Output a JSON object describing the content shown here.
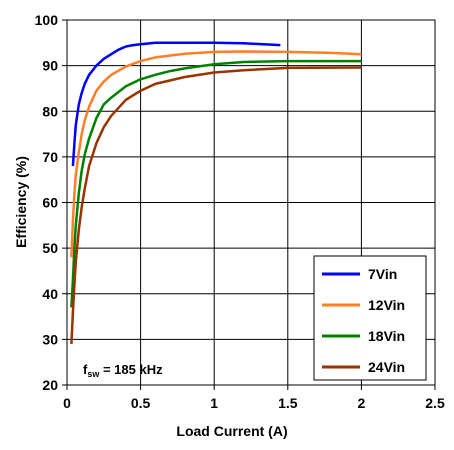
{
  "chart_data": {
    "type": "line",
    "title": "",
    "xlabel": "Load Current (A)",
    "ylabel": "Efficiency (%)",
    "xlim": [
      0,
      2.5
    ],
    "ylim": [
      20,
      100
    ],
    "x_ticks": [
      0,
      0.5,
      1,
      1.5,
      2,
      2.5
    ],
    "x_tick_labels": [
      "0",
      "0.5",
      "1",
      "1.5",
      "2",
      "2.5"
    ],
    "y_ticks": [
      20,
      30,
      40,
      50,
      60,
      70,
      80,
      90,
      100
    ],
    "y_tick_labels": [
      "20",
      "30",
      "40",
      "50",
      "60",
      "70",
      "80",
      "90",
      "100"
    ],
    "grid": true,
    "legend_position": "bottom-right",
    "annotation": {
      "main": "f",
      "sub": "sw",
      "rest": " = 185 kHz"
    },
    "series": [
      {
        "name": "7Vin",
        "color": "#0000FF",
        "x": [
          0.04,
          0.05,
          0.06,
          0.08,
          0.1,
          0.12,
          0.15,
          0.2,
          0.25,
          0.3,
          0.35,
          0.4,
          0.45,
          0.5,
          0.6,
          0.8,
          1.0,
          1.2,
          1.45
        ],
        "y": [
          68,
          73,
          77,
          81.5,
          84,
          86,
          88,
          90,
          91.5,
          92.5,
          93.5,
          94.2,
          94.5,
          94.7,
          95,
          95,
          95,
          94.9,
          94.5
        ]
      },
      {
        "name": "12Vin",
        "color": "#FF7F27",
        "x": [
          0.03,
          0.04,
          0.05,
          0.06,
          0.08,
          0.1,
          0.12,
          0.15,
          0.2,
          0.25,
          0.3,
          0.4,
          0.5,
          0.6,
          0.8,
          1.0,
          1.2,
          1.5,
          1.8,
          2.0
        ],
        "y": [
          48,
          56,
          62,
          66,
          71,
          75,
          78,
          81,
          84.5,
          86.5,
          88,
          89.8,
          91,
          91.8,
          92.6,
          93,
          93.1,
          93,
          92.8,
          92.5
        ]
      },
      {
        "name": "18Vin",
        "color": "#008000",
        "x": [
          0.03,
          0.04,
          0.05,
          0.06,
          0.08,
          0.1,
          0.12,
          0.15,
          0.2,
          0.25,
          0.3,
          0.4,
          0.5,
          0.6,
          0.7,
          0.8,
          1.0,
          1.2,
          1.5,
          2.0
        ],
        "y": [
          37,
          43,
          50,
          55,
          62,
          67,
          70.5,
          74,
          78.5,
          81.5,
          83,
          85.5,
          87,
          88,
          88.8,
          89.4,
          90.3,
          90.8,
          91,
          91
        ]
      },
      {
        "name": "24Vin",
        "color": "#993300",
        "x": [
          0.03,
          0.04,
          0.05,
          0.06,
          0.08,
          0.1,
          0.12,
          0.15,
          0.2,
          0.25,
          0.3,
          0.4,
          0.5,
          0.6,
          0.8,
          1.0,
          1.2,
          1.5,
          2.0
        ],
        "y": [
          29,
          36,
          42,
          47,
          54,
          59,
          63,
          68,
          73,
          76.5,
          79,
          82.5,
          84.5,
          86,
          87.5,
          88.5,
          89,
          89.5,
          89.6
        ]
      }
    ]
  }
}
